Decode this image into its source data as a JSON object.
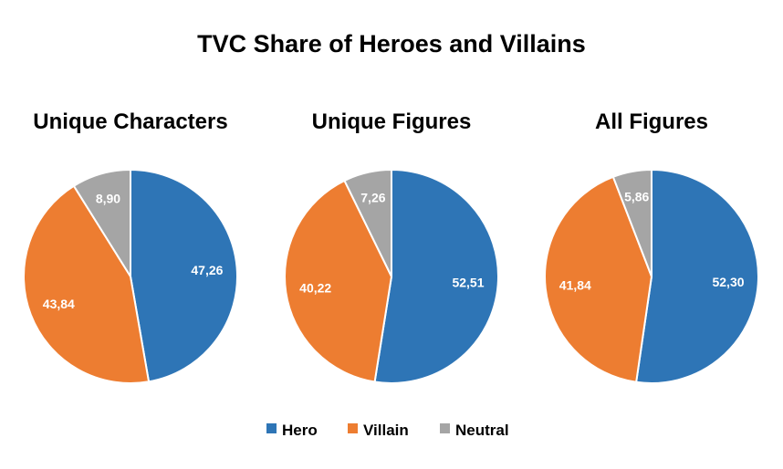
{
  "title": "TVC Share of Heroes and Villains",
  "colors": {
    "Hero": "#2E75B6",
    "Villain": "#ED7D31",
    "Neutral": "#A5A5A5"
  },
  "legend": [
    {
      "label": "Hero",
      "color": "#2E75B6"
    },
    {
      "label": "Villain",
      "color": "#ED7D31"
    },
    {
      "label": "Neutral",
      "color": "#A5A5A5"
    }
  ],
  "chart_data": [
    {
      "type": "pie",
      "title": "Unique Characters",
      "categories": [
        "Hero",
        "Villain",
        "Neutral"
      ],
      "values": [
        47.26,
        43.84,
        8.9
      ],
      "labels": [
        "47,26",
        "43,84",
        "8,90"
      ],
      "legend_position": "bottom"
    },
    {
      "type": "pie",
      "title": "Unique Figures",
      "categories": [
        "Hero",
        "Villain",
        "Neutral"
      ],
      "values": [
        52.51,
        40.22,
        7.26
      ],
      "labels": [
        "52,51",
        "40,22",
        "7,26"
      ],
      "legend_position": "bottom"
    },
    {
      "type": "pie",
      "title": "All Figures",
      "categories": [
        "Hero",
        "Villain",
        "Neutral"
      ],
      "values": [
        52.3,
        41.84,
        5.86
      ],
      "labels": [
        "52,30",
        "41,84",
        "5,86"
      ],
      "legend_position": "bottom"
    }
  ]
}
